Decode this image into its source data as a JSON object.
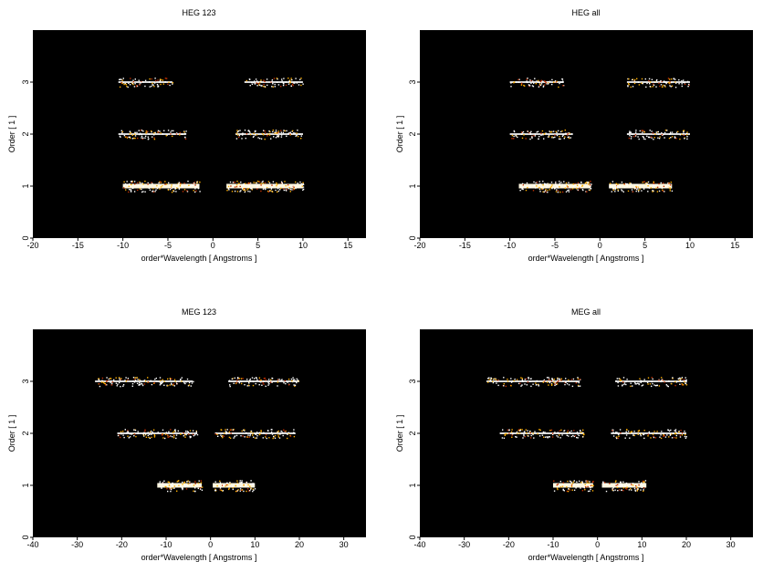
{
  "chart_data": [
    {
      "type": "heatmap",
      "title": "HEG 123",
      "xlabel": "order*Wavelength [ Angstroms ]",
      "ylabel": "Order [ 1 ]",
      "xlim": [
        -20,
        17
      ],
      "ylim": [
        0,
        4
      ],
      "xticks": [
        -20,
        -15,
        -10,
        -5,
        0,
        5,
        10,
        15
      ],
      "yticks": [
        0,
        1,
        2,
        3
      ],
      "background": "#000000",
      "bands": [
        {
          "order": 1,
          "x_ranges": [
            [
              -10,
              -1.5
            ],
            [
              1.5,
              10
            ]
          ],
          "brightness": 1.0
        },
        {
          "order": 2,
          "x_ranges": [
            [
              -10.5,
              -3
            ],
            [
              2.5,
              10
            ]
          ],
          "brightness": 0.5
        },
        {
          "order": 3,
          "x_ranges": [
            [
              -10.5,
              -4.5
            ],
            [
              3.5,
              10
            ]
          ],
          "brightness": 0.4
        }
      ]
    },
    {
      "type": "heatmap",
      "title": "HEG all",
      "xlabel": "order*Wavelength [ Angstroms ]",
      "ylabel": "Order [ 1 ]",
      "xlim": [
        -20,
        17
      ],
      "ylim": [
        0,
        4
      ],
      "xticks": [
        -20,
        -15,
        -10,
        -5,
        0,
        5,
        10,
        15
      ],
      "yticks": [
        0,
        1,
        2,
        3
      ],
      "background": "#000000",
      "bands": [
        {
          "order": 1,
          "x_ranges": [
            [
              -9,
              -1
            ],
            [
              1,
              8
            ]
          ],
          "brightness": 1.0
        },
        {
          "order": 2,
          "x_ranges": [
            [
              -10,
              -3
            ],
            [
              3,
              10
            ]
          ],
          "brightness": 0.5
        },
        {
          "order": 3,
          "x_ranges": [
            [
              -10,
              -4
            ],
            [
              3,
              10
            ]
          ],
          "brightness": 0.4
        }
      ]
    },
    {
      "type": "heatmap",
      "title": "MEG 123",
      "xlabel": "order*Wavelength [ Angstroms ]",
      "ylabel": "Order [ 1 ]",
      "xlim": [
        -40,
        35
      ],
      "ylim": [
        0,
        4
      ],
      "xticks": [
        -40,
        -30,
        -20,
        -10,
        0,
        10,
        20,
        30
      ],
      "yticks": [
        0,
        1,
        2,
        3
      ],
      "background": "#000000",
      "bands": [
        {
          "order": 1,
          "x_ranges": [
            [
              -12,
              -2
            ],
            [
              0.5,
              10
            ]
          ],
          "brightness": 1.0
        },
        {
          "order": 2,
          "x_ranges": [
            [
              -21,
              -3
            ],
            [
              1,
              19
            ]
          ],
          "brightness": 0.45
        },
        {
          "order": 3,
          "x_ranges": [
            [
              -26,
              -4
            ],
            [
              4,
              20
            ]
          ],
          "brightness": 0.5
        }
      ]
    },
    {
      "type": "heatmap",
      "title": "MEG all",
      "xlabel": "order*Wavelength [ Angstroms ]",
      "ylabel": "Order [ 1 ]",
      "xlim": [
        -40,
        35
      ],
      "ylim": [
        0,
        4
      ],
      "xticks": [
        -40,
        -30,
        -20,
        -10,
        0,
        10,
        20,
        30
      ],
      "yticks": [
        0,
        1,
        2,
        3
      ],
      "background": "#000000",
      "bands": [
        {
          "order": 1,
          "x_ranges": [
            [
              -10,
              -1
            ],
            [
              1,
              11
            ]
          ],
          "brightness": 1.0
        },
        {
          "order": 2,
          "x_ranges": [
            [
              -22,
              -3
            ],
            [
              3,
              20
            ]
          ],
          "brightness": 0.5
        },
        {
          "order": 3,
          "x_ranges": [
            [
              -25,
              -4
            ],
            [
              4,
              20
            ]
          ],
          "brightness": 0.45
        }
      ]
    }
  ]
}
